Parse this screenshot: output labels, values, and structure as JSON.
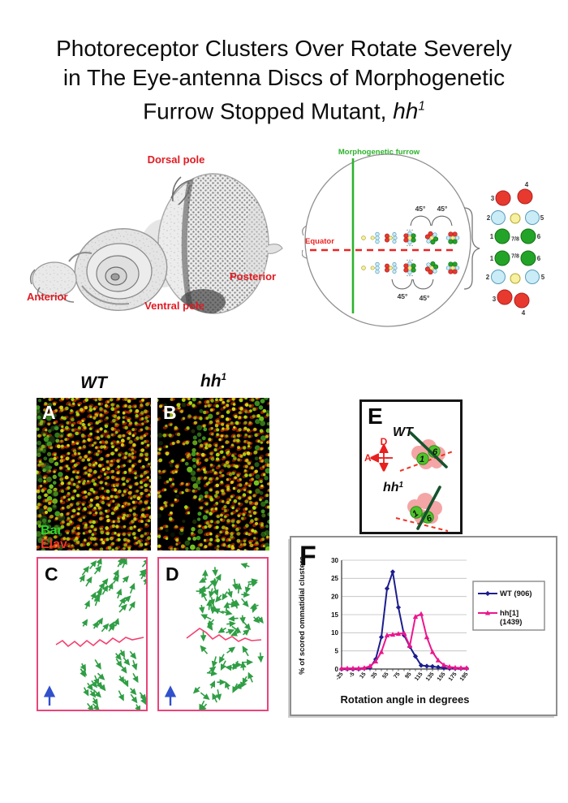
{
  "title": {
    "line1": "Photoreceptor Clusters Over Rotate Severely",
    "line2": "in The Eye-antenna Discs of Morphogenetic",
    "line3_prefix": "Furrow Stopped Mutant, ",
    "line3_gene": "hh",
    "line3_sup": "1"
  },
  "anatomy": {
    "dorsal": "Dorsal pole",
    "posterior": "Posterior",
    "ventral": "Ventral pole",
    "anterior": "Anterior"
  },
  "disc_diagram": {
    "furrow_label": "Morphogenetic furrow",
    "equator_label": "Equator",
    "rotation_angle": "45°",
    "dorsal_cluster": [
      {
        "label": "3",
        "color": "red"
      },
      {
        "label": "4",
        "color": "red"
      },
      {
        "label": "2",
        "color": "lightblue"
      },
      {
        "label": "",
        "color": "yellow"
      },
      {
        "label": "5",
        "color": "lightblue"
      },
      {
        "label": "1",
        "color": "green"
      },
      {
        "label": "7/8",
        "color": "text"
      },
      {
        "label": "6",
        "color": "green"
      }
    ],
    "ventral_cluster": [
      {
        "label": "1",
        "color": "green"
      },
      {
        "label": "7/8",
        "color": "text"
      },
      {
        "label": "6",
        "color": "green"
      },
      {
        "label": "2",
        "color": "lightblue"
      },
      {
        "label": "",
        "color": "yellow"
      },
      {
        "label": "5",
        "color": "lightblue"
      },
      {
        "label": "3",
        "color": "red"
      },
      {
        "label": "4",
        "color": "red"
      }
    ]
  },
  "panel_titles": {
    "wt": "WT",
    "mut_base": "hh",
    "mut_sup": "1"
  },
  "panels": {
    "a": "A",
    "b": "B",
    "c": "C",
    "d": "D",
    "e": "E",
    "f": "F"
  },
  "stains": {
    "green": "Bar",
    "red": "Elav"
  },
  "panel_e": {
    "wt_label": "WT",
    "mut_base": "hh",
    "mut_sup": "1",
    "axis_dorsal": "D",
    "axis_anterior": "A",
    "cell_1": "1",
    "cell_6": "6"
  },
  "chart_data": {
    "type": "line",
    "xlabel": "Rotation angle in degrees",
    "ylabel": "% of scored ommatidial clusters",
    "ylim": [
      0,
      30
    ],
    "ytick_step": 5,
    "grid": "horizontal",
    "legend_position": "right",
    "x": [
      -25,
      -15,
      -5,
      5,
      15,
      25,
      35,
      45,
      55,
      65,
      75,
      85,
      95,
      105,
      115,
      125,
      135,
      145,
      155,
      165,
      175,
      185,
      195
    ],
    "series": [
      {
        "name": "WT (906)",
        "legend_lines": [
          "WT (906)"
        ],
        "marker": "diamond",
        "color": "#1d1d8f",
        "values": [
          0,
          0,
          0,
          0,
          0.2,
          0.4,
          2.7,
          8.8,
          22.2,
          26.8,
          17,
          9.3,
          6.2,
          3.5,
          1,
          0.8,
          0.7,
          0.5,
          0.3,
          0.2,
          0.2,
          0.2,
          0.2
        ]
      },
      {
        "name": "hh[1] (1439)",
        "legend_lines": [
          "hh[1]",
          "(1439)"
        ],
        "marker": "triangle",
        "color": "#ec168e",
        "values": [
          0.2,
          0.2,
          0.2,
          0.2,
          0.3,
          0.8,
          2.1,
          4.7,
          9.3,
          9.5,
          9.7,
          9.9,
          6.4,
          14.4,
          15.2,
          8.8,
          4.7,
          2.4,
          1.1,
          0.6,
          0.4,
          0.3,
          0.3
        ]
      }
    ]
  },
  "colors": {
    "label_red": "#e01b22",
    "furrow_green": "#2db32d",
    "equator_red": "#ee2222",
    "panel_border_pink": "#e8447a",
    "zigzag_pink": "#f43f6f",
    "arrow_green": "#2f9e44",
    "blue_arrow": "#3050cc",
    "cluster_red": "#e8392f",
    "cluster_lightblue": "#c9ecf7",
    "cluster_yellow": "#f6f0a0",
    "cluster_green": "#23a428",
    "blob_pink": "#f4a5a5",
    "axis_dark_green": "#14532d",
    "wt_line": "#1d1d8f",
    "hh_line": "#ec168e"
  }
}
